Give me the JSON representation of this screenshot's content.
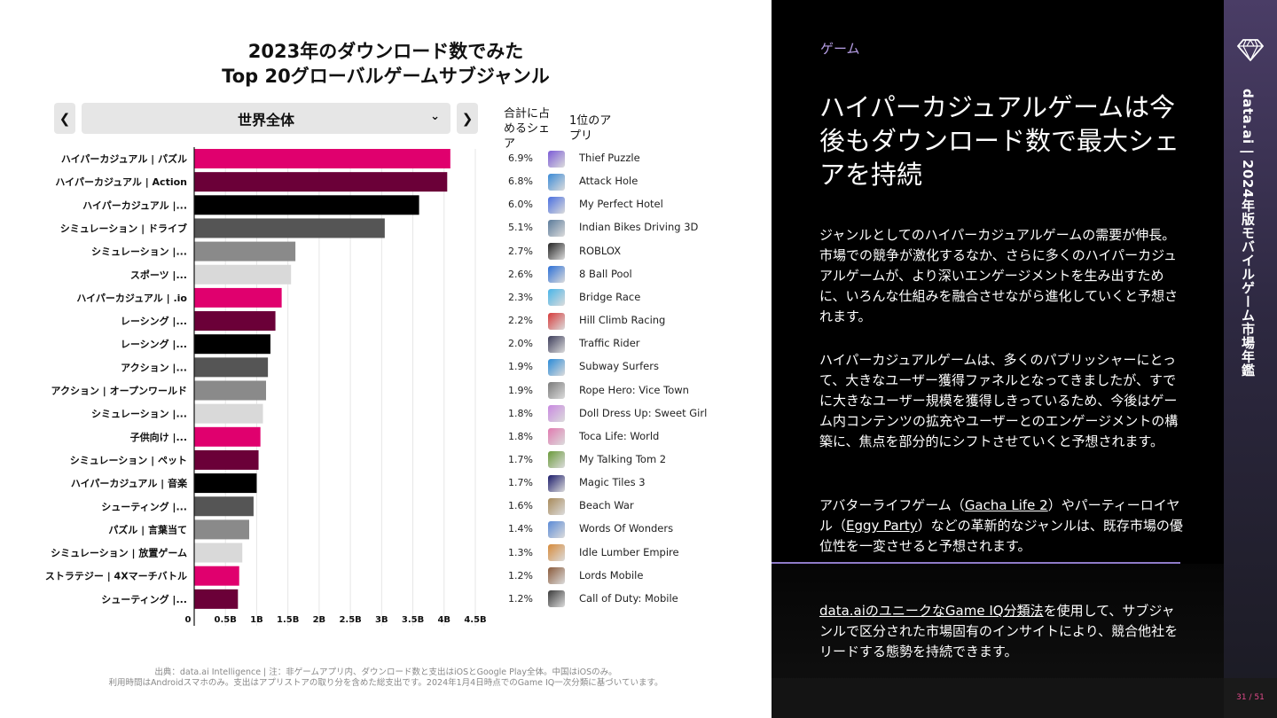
{
  "chart_title_line1": "2023年のダウンロード数でみた",
  "chart_title_line2": "Top 20グローバルゲームサブジャンル",
  "selector": {
    "value": "世界全体",
    "prev_icon": "chevron-left",
    "next_icon": "chevron-right"
  },
  "columns": {
    "share_header": "合計に占めるシェア",
    "top_app_header": "1位のアプリ"
  },
  "colors": {
    "pink": "#e0006e",
    "maroon": "#6b0038",
    "black": "#000000",
    "dark_gray": "#555555",
    "mid_gray": "#8a8a8a",
    "light_gray": "#d9d9d9"
  },
  "chart_data": {
    "type": "bar",
    "orientation": "horizontal",
    "categories": [
      "ハイパーカジュアル | パズル",
      "ハイパーカジュアル | Action",
      "ハイパーカジュアル |...",
      "シミュレーション | ドライブ",
      "シミュレーション |...",
      "スポーツ |...",
      "ハイパーカジュアル | .io",
      "レーシング |...",
      "レーシング |...",
      "アクション |...",
      "アクション | オープンワールド",
      "シミュレーション |...",
      "子供向け |...",
      "シミュレーション | ペット",
      "ハイパーカジュアル | 音楽",
      "シューティング |...",
      "パズル | 言葉当て",
      "シミュレーション | 放置ゲーム",
      "ストラテジー | 4Xマーチバトル",
      "シューティング |..."
    ],
    "values": [
      4.1,
      4.05,
      3.6,
      3.05,
      1.62,
      1.55,
      1.4,
      1.3,
      1.22,
      1.18,
      1.15,
      1.1,
      1.06,
      1.03,
      1.0,
      0.95,
      0.88,
      0.77,
      0.72,
      0.7
    ],
    "bar_colors": [
      "#e0006e",
      "#6b0038",
      "#000000",
      "#555555",
      "#8a8a8a",
      "#d9d9d9",
      "#e0006e",
      "#6b0038",
      "#000000",
      "#555555",
      "#8a8a8a",
      "#d9d9d9",
      "#e0006e",
      "#6b0038",
      "#000000",
      "#555555",
      "#8a8a8a",
      "#d9d9d9",
      "#e0006e",
      "#6b0038"
    ],
    "xlim": [
      0,
      4.5
    ],
    "xticks": [
      0,
      0.5,
      1,
      1.5,
      2,
      2.5,
      3,
      3.5,
      4,
      4.5
    ],
    "xtick_labels": [
      "0",
      "0.5B",
      "1B",
      "1.5B",
      "2B",
      "2.5B",
      "3B",
      "3.5B",
      "4B",
      "4.5B"
    ],
    "grid": true,
    "shares": [
      "6.9%",
      "6.8%",
      "6.0%",
      "5.1%",
      "2.7%",
      "2.6%",
      "2.3%",
      "2.2%",
      "2.0%",
      "1.9%",
      "1.9%",
      "1.8%",
      "1.8%",
      "1.7%",
      "1.7%",
      "1.6%",
      "1.4%",
      "1.3%",
      "1.2%",
      "1.2%"
    ],
    "top_apps": [
      "Thief Puzzle",
      "Attack Hole",
      "My Perfect Hotel",
      "Indian Bikes Driving 3D",
      "ROBLOX",
      "8 Ball Pool",
      "Bridge Race",
      "Hill Climb Racing",
      "Traffic Rider",
      "Subway Surfers",
      "Rope Hero: Vice Town",
      "Doll Dress Up: Sweet Girl",
      "Toca Life: World",
      "My Talking Tom 2",
      "Magic Tiles 3",
      "Beach War",
      "Words Of Wonders",
      "Idle Lumber Empire",
      "Lords Mobile",
      "Call of Duty: Mobile"
    ]
  },
  "source_note_line1": "出典：data.ai Intelligence | 注：非ゲームアプリ内、ダウンロード数と支出はiOSとGoogle Play全体。中国はiOSのみ。",
  "source_note_line2": "利用時間はAndroidスマホのみ。支出はアプリストアの取り分を含めた総支出です。2024年1月4日時点でのGame IQ一次分類に基づいています。",
  "right": {
    "section_label": "ゲーム",
    "headline": "ハイパーカジュアルゲームは今後もダウンロード数で最大シェアを持続",
    "para1": "ジャンルとしてのハイパーカジュアルゲームの需要が伸長。市場での競争が激化するなか、さらに多くのハイパーカジュアルゲームが、より深いエンゲージメントを生み出すために、いろんな仕組みを融合させながら進化していくと予想されます。",
    "para2": "ハイパーカジュアルゲームは、多くのパブリッシャーにとって、大きなユーザー獲得ファネルとなってきましたが、すでに大きなユーザー規模を獲得しきっているため、今後はゲーム内コンテンツの拡充やユーザーとのエンゲージメントの構築に、焦点を部分的にシフトさせていくと予想されます。",
    "para3_a": "アバターライフゲーム（",
    "para3_link1": "Gacha Life 2",
    "para3_b": "）やパーティーロイヤル（",
    "para3_link2": "Eggy Party",
    "para3_c": "）などの革新的なジャンルは、既存市場の優位性を一変させると予想されます。",
    "para4_link": "data.aiのユニークなGame IQ分類法",
    "para4_rest": "を使用して、サブジャンルで区分された市場固有のインサイトにより、競合他社をリードする態勢を持続できます。"
  },
  "sidebar": {
    "vertical_title": "data.ai | 2024年版モバイルゲーム市場年鑑",
    "page_number": "31 / 51"
  }
}
